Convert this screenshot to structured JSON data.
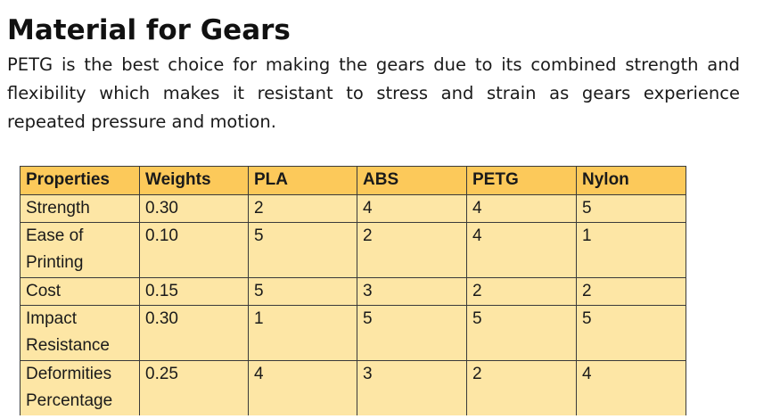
{
  "heading": "Material for Gears",
  "paragraph": "PETG is the best choice for making the gears due to its combined strength and flexibility which makes it resistant to stress and strain as gears experience repeated pressure and motion.",
  "table": {
    "headers": [
      "Properties",
      "Weights",
      "PLA",
      "ABS",
      "PETG",
      "Nylon"
    ],
    "rows": [
      [
        "Strength",
        "0.30",
        "2",
        "4",
        "4",
        "5"
      ],
      [
        "Ease of Printing",
        "0.10",
        "5",
        "2",
        "4",
        "1"
      ],
      [
        "Cost",
        "0.15",
        "5",
        "3",
        "2",
        "2"
      ],
      [
        "Impact Resistance",
        "0.30",
        "1",
        "5",
        "5",
        "5"
      ],
      [
        "Deformities Percentage",
        "0.25",
        "4",
        "3",
        "2",
        "4"
      ]
    ]
  },
  "colors": {
    "header_fill": "#fcc95a",
    "cell_fill": "#fde6a5",
    "border": "#3a3a3a"
  }
}
